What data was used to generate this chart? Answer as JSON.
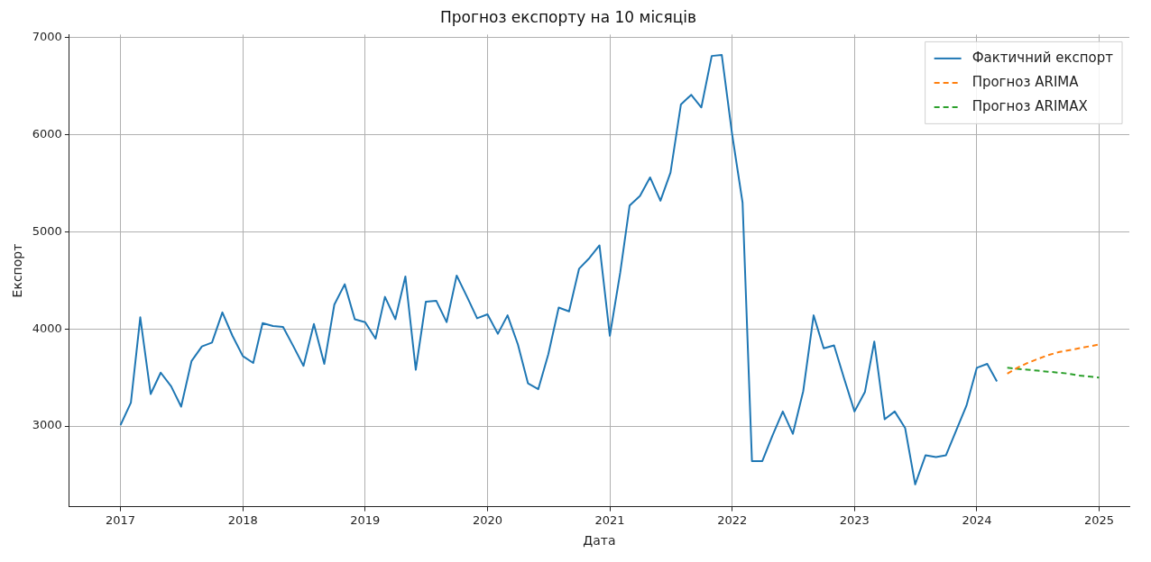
{
  "chart_data": {
    "type": "line",
    "title": "Прогноз експорту на 10 місяців",
    "xlabel": "Дата",
    "ylabel": "Експорт",
    "xlim": [
      "2016-08",
      "2025-04"
    ],
    "xticks": [
      "2017",
      "2018",
      "2019",
      "2020",
      "2021",
      "2022",
      "2023",
      "2024",
      "2025"
    ],
    "ylim": [
      2170,
      7030
    ],
    "yticks": [
      3000,
      4000,
      5000,
      6000,
      7000
    ],
    "grid": true,
    "legend": "top right",
    "series": [
      {
        "name": "Фактичний експорт",
        "color": "#1f77b4",
        "line_style": "solid",
        "x": [
          "2017-01",
          "2017-02",
          "2017-03",
          "2017-04",
          "2017-05",
          "2017-06",
          "2017-07",
          "2017-08",
          "2017-09",
          "2017-10",
          "2017-11",
          "2017-12",
          "2018-01",
          "2018-02",
          "2018-03",
          "2018-04",
          "2018-05",
          "2018-06",
          "2018-07",
          "2018-08",
          "2018-09",
          "2018-10",
          "2018-11",
          "2018-12",
          "2019-01",
          "2019-02",
          "2019-03",
          "2019-04",
          "2019-05",
          "2019-06",
          "2019-07",
          "2019-08",
          "2019-09",
          "2019-10",
          "2019-11",
          "2019-12",
          "2020-01",
          "2020-02",
          "2020-03",
          "2020-04",
          "2020-05",
          "2020-06",
          "2020-07",
          "2020-08",
          "2020-09",
          "2020-10",
          "2020-11",
          "2020-12",
          "2021-01",
          "2021-02",
          "2021-03",
          "2021-04",
          "2021-05",
          "2021-06",
          "2021-07",
          "2021-08",
          "2021-09",
          "2021-10",
          "2021-11",
          "2021-12",
          "2022-01",
          "2022-02",
          "2022-03",
          "2022-04",
          "2022-05",
          "2022-06",
          "2022-07",
          "2022-08",
          "2022-09",
          "2022-10",
          "2022-11",
          "2022-12",
          "2023-01",
          "2023-02",
          "2023-03",
          "2023-04",
          "2023-05",
          "2023-06",
          "2023-07",
          "2023-08",
          "2023-09",
          "2023-10",
          "2023-11",
          "2023-12",
          "2024-01",
          "2024-02",
          "2024-03"
        ],
        "values": [
          3010,
          3240,
          4120,
          3330,
          3550,
          3410,
          3200,
          3670,
          3820,
          3860,
          4170,
          3930,
          3720,
          3650,
          4060,
          4030,
          4020,
          3820,
          3620,
          4050,
          3640,
          4250,
          4460,
          4100,
          4070,
          3900,
          4330,
          4100,
          4540,
          3580,
          4280,
          4290,
          4070,
          4550,
          4330,
          4110,
          4150,
          3950,
          4140,
          3840,
          3440,
          3380,
          3740,
          4220,
          4180,
          4620,
          4730,
          4860,
          3930,
          4580,
          5270,
          5370,
          5560,
          5320,
          5610,
          6310,
          6410,
          6280,
          6810,
          6820,
          6000,
          5300,
          2640,
          2640,
          2900,
          3150,
          2920,
          3360,
          4140,
          3800,
          3830,
          3490,
          3150,
          3350,
          3870,
          3070,
          3150,
          2980,
          2400,
          2700,
          2680,
          2700,
          2960,
          3210,
          3600,
          3640,
          3460
        ]
      },
      {
        "name": "Прогноз ARIMA",
        "color": "#ff7f0e",
        "line_style": "dashed",
        "x": [
          "2024-04",
          "2024-05",
          "2024-06",
          "2024-07",
          "2024-08",
          "2024-09",
          "2024-10",
          "2024-11",
          "2024-12",
          "2025-01"
        ],
        "values": [
          3540,
          3600,
          3650,
          3690,
          3730,
          3760,
          3780,
          3800,
          3820,
          3840
        ]
      },
      {
        "name": "Прогноз ARIMAX",
        "color": "#2ca02c",
        "line_style": "dashed",
        "x": [
          "2024-04",
          "2024-05",
          "2024-06",
          "2024-07",
          "2024-08",
          "2024-09",
          "2024-10",
          "2024-11",
          "2024-12",
          "2025-01"
        ],
        "values": [
          3600,
          3590,
          3580,
          3570,
          3560,
          3550,
          3540,
          3520,
          3510,
          3500
        ]
      }
    ]
  }
}
